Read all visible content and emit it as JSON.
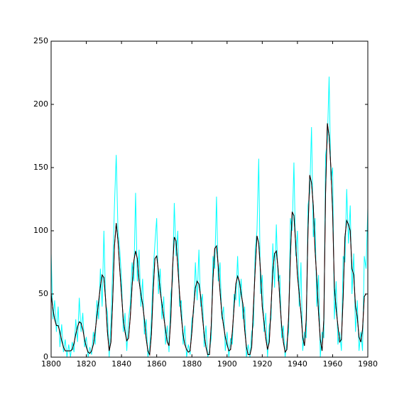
{
  "chart_data": {
    "type": "line",
    "x": [
      1800,
      1801,
      1802,
      1803,
      1804,
      1805,
      1806,
      1807,
      1808,
      1809,
      1810,
      1811,
      1812,
      1813,
      1814,
      1815,
      1816,
      1817,
      1818,
      1819,
      1820,
      1821,
      1822,
      1823,
      1824,
      1825,
      1826,
      1827,
      1828,
      1829,
      1830,
      1831,
      1832,
      1833,
      1834,
      1835,
      1836,
      1837,
      1838,
      1839,
      1840,
      1841,
      1842,
      1843,
      1844,
      1845,
      1846,
      1847,
      1848,
      1849,
      1850,
      1851,
      1852,
      1853,
      1854,
      1855,
      1856,
      1857,
      1858,
      1859,
      1860,
      1861,
      1862,
      1863,
      1864,
      1865,
      1866,
      1867,
      1868,
      1869,
      1870,
      1871,
      1872,
      1873,
      1874,
      1875,
      1876,
      1877,
      1878,
      1879,
      1880,
      1881,
      1882,
      1883,
      1884,
      1885,
      1886,
      1887,
      1888,
      1889,
      1890,
      1891,
      1892,
      1893,
      1894,
      1895,
      1896,
      1897,
      1898,
      1899,
      1900,
      1901,
      1902,
      1903,
      1904,
      1905,
      1906,
      1907,
      1908,
      1909,
      1910,
      1911,
      1912,
      1913,
      1914,
      1915,
      1916,
      1917,
      1918,
      1919,
      1920,
      1921,
      1922,
      1923,
      1924,
      1925,
      1926,
      1927,
      1928,
      1929,
      1930,
      1931,
      1932,
      1933,
      1934,
      1935,
      1936,
      1937,
      1938,
      1939,
      1940,
      1941,
      1942,
      1943,
      1944,
      1945,
      1946,
      1947,
      1948,
      1949,
      1950,
      1951,
      1952,
      1953,
      1954,
      1955,
      1956,
      1957,
      1958,
      1959,
      1960,
      1961,
      1962,
      1963,
      1964,
      1965,
      1966,
      1967,
      1968,
      1969,
      1970,
      1971,
      1972,
      1973,
      1974,
      1975,
      1976,
      1977,
      1978,
      1979,
      1980
    ],
    "series": [
      {
        "color": "#00ffff",
        "values": [
          82,
          30,
          45,
          20,
          40,
          8,
          26,
          4,
          14,
          0,
          10,
          0,
          12,
          4,
          30,
          12,
          47,
          20,
          35,
          8,
          16,
          0,
          8,
          2,
          20,
          10,
          45,
          30,
          70,
          40,
          100,
          42,
          36,
          0,
          28,
          70,
          120,
          160,
          100,
          85,
          62,
          20,
          35,
          5,
          30,
          42,
          75,
          60,
          130,
          60,
          85,
          40,
          62,
          18,
          30,
          0,
          8,
          30,
          68,
          90,
          110,
          50,
          70,
          30,
          48,
          10,
          25,
          4,
          50,
          60,
          122,
          80,
          100,
          40,
          45,
          10,
          25,
          0,
          10,
          2,
          30,
          35,
          75,
          45,
          85,
          40,
          50,
          8,
          25,
          0,
          5,
          15,
          80,
          70,
          127,
          60,
          75,
          30,
          40,
          5,
          20,
          0,
          15,
          10,
          50,
          45,
          80,
          40,
          62,
          30,
          40,
          0,
          10,
          0,
          20,
          25,
          85,
          100,
          157,
          50,
          65,
          20,
          35,
          0,
          25,
          30,
          90,
          55,
          105,
          60,
          65,
          15,
          25,
          0,
          12,
          20,
          110,
          100,
          154,
          80,
          100,
          40,
          75,
          5,
          20,
          15,
          120,
          130,
          182,
          95,
          110,
          40,
          65,
          0,
          20,
          15,
          160,
          170,
          222,
          140,
          150,
          30,
          60,
          10,
          20,
          5,
          80,
          75,
          133,
          90,
          120,
          50,
          82,
          20,
          45,
          5,
          20,
          5,
          80,
          70,
          118
        ]
      },
      {
        "color": "#ff0000",
        "values": [
          50,
          38,
          30,
          25,
          25,
          20,
          13,
          8,
          5,
          5,
          5,
          5,
          6,
          11,
          18,
          24,
          28,
          27,
          22,
          14,
          8,
          4,
          3,
          5,
          10,
          20,
          32,
          44,
          56,
          65,
          63,
          45,
          20,
          5,
          12,
          45,
          88,
          106,
          92,
          70,
          50,
          30,
          20,
          13,
          15,
          32,
          56,
          76,
          84,
          78,
          60,
          50,
          42,
          30,
          15,
          5,
          2,
          18,
          52,
          78,
          80,
          68,
          52,
          42,
          32,
          22,
          12,
          9,
          30,
          70,
          95,
          92,
          72,
          50,
          32,
          18,
          10,
          6,
          4,
          5,
          20,
          40,
          55,
          60,
          58,
          48,
          32,
          18,
          8,
          2,
          2,
          25,
          62,
          86,
          88,
          72,
          52,
          35,
          25,
          16,
          10,
          5,
          6,
          20,
          40,
          58,
          64,
          60,
          50,
          42,
          22,
          8,
          2,
          2,
          8,
          40,
          70,
          96,
          90,
          68,
          40,
          28,
          15,
          6,
          12,
          40,
          68,
          82,
          84,
          70,
          45,
          25,
          12,
          4,
          6,
          32,
          80,
          115,
          112,
          90,
          65,
          50,
          35,
          16,
          9,
          30,
          100,
          144,
          138,
          120,
          85,
          62,
          35,
          14,
          5,
          30,
          130,
          185,
          175,
          150,
          115,
          55,
          38,
          25,
          12,
          14,
          48,
          95,
          108,
          105,
          100,
          70,
          65,
          40,
          32,
          16,
          12,
          22,
          48,
          50,
          50
        ]
      },
      {
        "color": "#000000",
        "values": [
          50,
          38,
          30,
          25,
          25,
          20,
          13,
          8,
          5,
          5,
          5,
          5,
          6,
          11,
          18,
          24,
          28,
          27,
          22,
          14,
          8,
          4,
          3,
          5,
          10,
          20,
          32,
          44,
          56,
          65,
          63,
          45,
          20,
          5,
          12,
          45,
          88,
          106,
          92,
          70,
          50,
          30,
          20,
          13,
          15,
          32,
          56,
          76,
          84,
          78,
          60,
          50,
          42,
          30,
          15,
          5,
          2,
          18,
          52,
          78,
          80,
          68,
          52,
          42,
          32,
          22,
          12,
          9,
          30,
          70,
          95,
          92,
          72,
          50,
          32,
          18,
          10,
          6,
          4,
          5,
          20,
          40,
          55,
          60,
          58,
          48,
          32,
          18,
          8,
          2,
          2,
          25,
          62,
          86,
          88,
          72,
          52,
          35,
          25,
          16,
          10,
          5,
          6,
          20,
          40,
          58,
          64,
          60,
          50,
          42,
          22,
          8,
          2,
          2,
          8,
          40,
          70,
          96,
          90,
          68,
          40,
          28,
          15,
          6,
          12,
          40,
          68,
          82,
          84,
          70,
          45,
          25,
          12,
          4,
          6,
          32,
          80,
          115,
          112,
          90,
          65,
          50,
          35,
          16,
          9,
          30,
          100,
          144,
          138,
          120,
          85,
          62,
          35,
          14,
          5,
          30,
          130,
          185,
          175,
          150,
          115,
          55,
          38,
          25,
          12,
          14,
          48,
          95,
          108,
          105,
          100,
          70,
          65,
          40,
          32,
          16,
          12,
          22,
          48,
          50,
          50
        ]
      }
    ],
    "xlim": [
      1800,
      1980
    ],
    "xticks": [
      1800,
      1820,
      1840,
      1860,
      1880,
      1900,
      1920,
      1940,
      1960,
      1980
    ],
    "ylim": [
      0,
      250
    ],
    "yticks": [
      0,
      50,
      100,
      150,
      200,
      250
    ]
  }
}
